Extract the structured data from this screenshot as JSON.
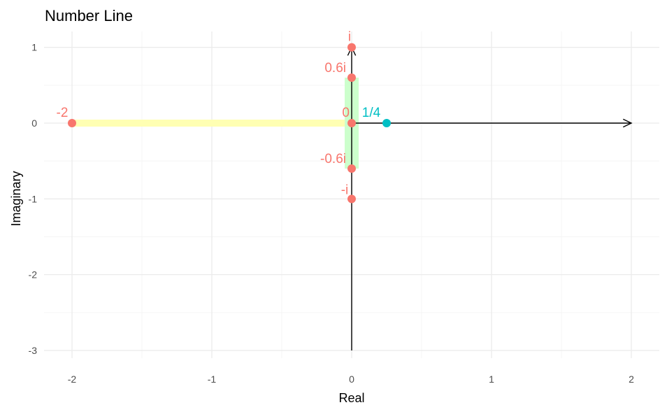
{
  "chart_data": {
    "type": "scatter",
    "title": "Number Line",
    "xlabel": "Real",
    "ylabel": "Imaginary",
    "xlim": [
      -2.2,
      2.2
    ],
    "ylim": [
      -3.05,
      1.12
    ],
    "x_ticks": [
      -2,
      -1,
      0,
      1,
      2
    ],
    "y_ticks": [
      1,
      0,
      -1,
      -2,
      -3
    ],
    "x_tick_labels": [
      "-2",
      "-1",
      "0",
      "1",
      "2"
    ],
    "y_tick_labels": [
      "1",
      "0",
      "-1",
      "-2",
      "-3"
    ],
    "grid": true,
    "colors": {
      "salmon": "#F8766D",
      "teal": "#00BFC4",
      "real_band": "#FFFFB3",
      "imag_band": "#CCFFCC",
      "axis_line": "#000000",
      "grid_major": "#EBEBEB",
      "grid_minor": "#F5F5F5"
    },
    "regions": [
      {
        "axis": "real",
        "from": -2,
        "to": 0,
        "color": "#FFFFB3"
      },
      {
        "axis": "imaginary",
        "from": -0.6,
        "to": 0.6,
        "color": "#CCFFCC"
      }
    ],
    "arrows": [
      {
        "from": [
          0,
          0
        ],
        "to": [
          2,
          0
        ]
      },
      {
        "from": [
          0,
          -3
        ],
        "to": [
          0,
          1
        ]
      }
    ],
    "points": [
      {
        "x": -2,
        "y": 0,
        "label": "-2",
        "color": "#F8766D"
      },
      {
        "x": 0,
        "y": 0,
        "label": "0",
        "color": "#F8766D"
      },
      {
        "x": 0,
        "y": 0.6,
        "label": "0.6i",
        "color": "#F8766D"
      },
      {
        "x": 0,
        "y": -0.6,
        "label": "-0.6i",
        "color": "#F8766D"
      },
      {
        "x": 0,
        "y": 1,
        "label": "i",
        "color": "#F8766D"
      },
      {
        "x": 0,
        "y": -1,
        "label": "-i",
        "color": "#F8766D"
      },
      {
        "x": 0.25,
        "y": 0,
        "label": "1/4",
        "color": "#00BFC4"
      }
    ]
  }
}
